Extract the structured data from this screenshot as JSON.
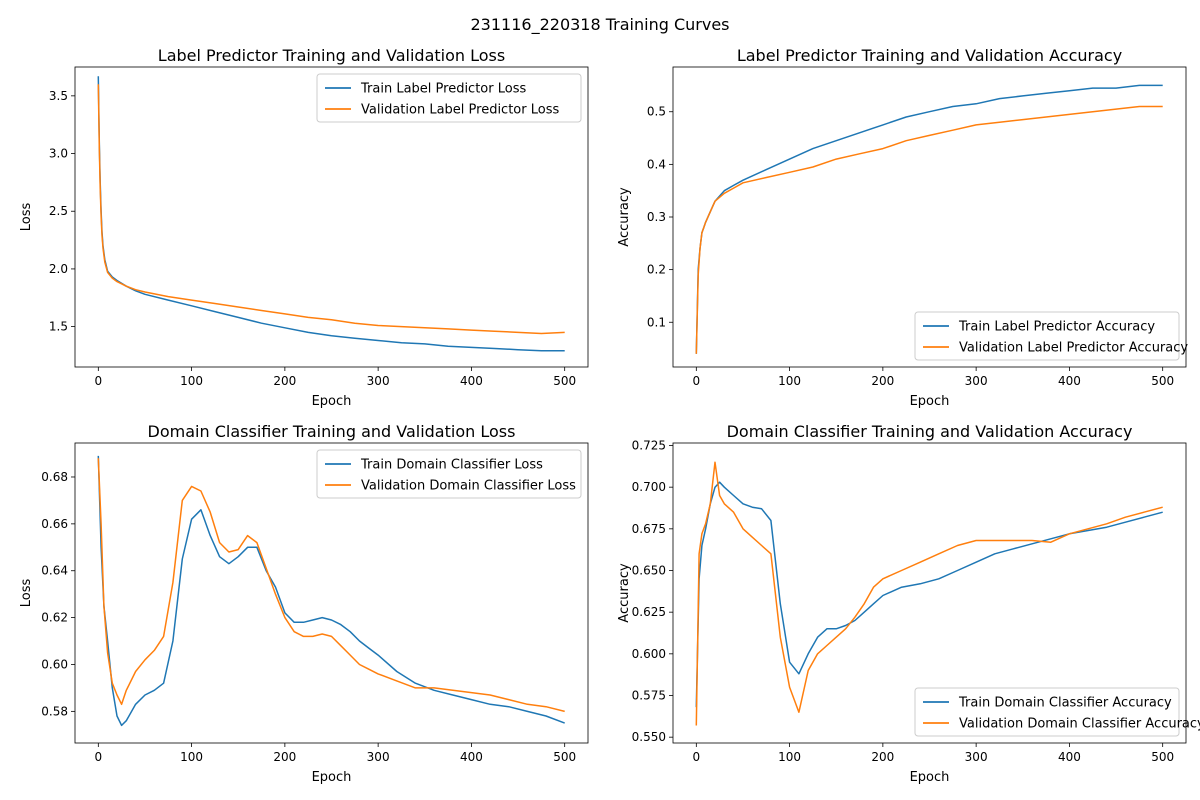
{
  "figure": {
    "suptitle": "231116_220318 Training Curves"
  },
  "chart_data": [
    {
      "type": "line",
      "title": "Label Predictor Training and Validation Loss",
      "xlabel": "Epoch",
      "ylabel": "Loss",
      "xlim": [
        -25,
        525
      ],
      "ylim": [
        1.15,
        3.75
      ],
      "xticks": [
        0,
        100,
        200,
        300,
        400,
        500
      ],
      "yticks": [
        1.5,
        2.0,
        2.5,
        3.0,
        3.5
      ],
      "ytick_labels": [
        "1.5",
        "2.0",
        "2.5",
        "3.0",
        "3.5"
      ],
      "legend": "upper-right",
      "series": [
        {
          "name": "Train Label Predictor Loss",
          "color": "#1f77b4",
          "x": [
            0,
            1,
            2,
            3,
            4,
            5,
            7,
            10,
            15,
            20,
            30,
            40,
            50,
            75,
            100,
            125,
            150,
            175,
            200,
            225,
            250,
            275,
            300,
            325,
            350,
            375,
            400,
            425,
            450,
            475,
            500
          ],
          "y": [
            3.67,
            3.1,
            2.75,
            2.5,
            2.32,
            2.2,
            2.08,
            1.98,
            1.93,
            1.9,
            1.85,
            1.81,
            1.78,
            1.73,
            1.68,
            1.63,
            1.58,
            1.53,
            1.49,
            1.45,
            1.42,
            1.4,
            1.38,
            1.36,
            1.35,
            1.33,
            1.32,
            1.31,
            1.3,
            1.29,
            1.29
          ]
        },
        {
          "name": "Validation Label Predictor Loss",
          "color": "#ff7f0e",
          "x": [
            0,
            1,
            2,
            3,
            4,
            5,
            7,
            10,
            15,
            20,
            30,
            40,
            50,
            75,
            100,
            125,
            150,
            175,
            200,
            225,
            250,
            275,
            300,
            325,
            350,
            375,
            400,
            425,
            450,
            475,
            500
          ],
          "y": [
            3.6,
            3.05,
            2.7,
            2.46,
            2.29,
            2.18,
            2.06,
            1.97,
            1.92,
            1.89,
            1.85,
            1.82,
            1.8,
            1.76,
            1.73,
            1.7,
            1.67,
            1.64,
            1.61,
            1.58,
            1.56,
            1.53,
            1.51,
            1.5,
            1.49,
            1.48,
            1.47,
            1.46,
            1.45,
            1.44,
            1.45
          ]
        }
      ]
    },
    {
      "type": "line",
      "title": "Label Predictor Training and Validation Accuracy",
      "xlabel": "Epoch",
      "ylabel": "Accuracy",
      "xlim": [
        -25,
        525
      ],
      "ylim": [
        0.015,
        0.585
      ],
      "xticks": [
        0,
        100,
        200,
        300,
        400,
        500
      ],
      "yticks": [
        0.1,
        0.2,
        0.3,
        0.4,
        0.5
      ],
      "ytick_labels": [
        "0.1",
        "0.2",
        "0.3",
        "0.4",
        "0.5"
      ],
      "legend": "lower-right",
      "series": [
        {
          "name": "Train Label Predictor Accuracy",
          "color": "#1f77b4",
          "x": [
            0,
            2,
            4,
            6,
            8,
            10,
            15,
            20,
            30,
            40,
            50,
            75,
            100,
            125,
            150,
            175,
            200,
            225,
            250,
            275,
            300,
            325,
            350,
            375,
            400,
            425,
            450,
            475,
            500
          ],
          "y": [
            0.04,
            0.2,
            0.24,
            0.27,
            0.28,
            0.29,
            0.31,
            0.33,
            0.35,
            0.36,
            0.37,
            0.39,
            0.41,
            0.43,
            0.445,
            0.46,
            0.475,
            0.49,
            0.5,
            0.51,
            0.515,
            0.525,
            0.53,
            0.535,
            0.54,
            0.545,
            0.545,
            0.55,
            0.55
          ]
        },
        {
          "name": "Validation Label Predictor Accuracy",
          "color": "#ff7f0e",
          "x": [
            0,
            2,
            4,
            6,
            8,
            10,
            15,
            20,
            30,
            40,
            50,
            75,
            100,
            125,
            150,
            175,
            200,
            225,
            250,
            275,
            300,
            325,
            350,
            375,
            400,
            425,
            450,
            475,
            500
          ],
          "y": [
            0.04,
            0.19,
            0.24,
            0.27,
            0.28,
            0.29,
            0.31,
            0.33,
            0.345,
            0.355,
            0.365,
            0.375,
            0.385,
            0.395,
            0.41,
            0.42,
            0.43,
            0.445,
            0.455,
            0.465,
            0.475,
            0.48,
            0.485,
            0.49,
            0.495,
            0.5,
            0.505,
            0.51,
            0.51
          ]
        }
      ]
    },
    {
      "type": "line",
      "title": "Domain Classifier Training and Validation Loss",
      "xlabel": "Epoch",
      "ylabel": "Loss",
      "xlim": [
        -25,
        525
      ],
      "ylim": [
        0.5665,
        0.6945
      ],
      "xticks": [
        0,
        100,
        200,
        300,
        400,
        500
      ],
      "yticks": [
        0.58,
        0.6,
        0.62,
        0.64,
        0.66,
        0.68
      ],
      "ytick_labels": [
        "0.58",
        "0.60",
        "0.62",
        "0.64",
        "0.66",
        "0.68"
      ],
      "legend": "upper-right",
      "series": [
        {
          "name": "Train Domain Classifier Loss",
          "color": "#1f77b4",
          "x": [
            0,
            3,
            6,
            10,
            15,
            20,
            25,
            30,
            40,
            50,
            60,
            70,
            80,
            90,
            100,
            110,
            120,
            130,
            140,
            150,
            160,
            170,
            180,
            190,
            200,
            210,
            220,
            230,
            240,
            250,
            260,
            270,
            280,
            290,
            300,
            320,
            340,
            360,
            380,
            400,
            420,
            440,
            460,
            480,
            500
          ],
          "y": [
            0.689,
            0.65,
            0.625,
            0.61,
            0.59,
            0.578,
            0.574,
            0.576,
            0.583,
            0.587,
            0.589,
            0.592,
            0.61,
            0.645,
            0.662,
            0.666,
            0.655,
            0.646,
            0.643,
            0.646,
            0.65,
            0.65,
            0.64,
            0.633,
            0.622,
            0.618,
            0.618,
            0.619,
            0.62,
            0.619,
            0.617,
            0.614,
            0.61,
            0.607,
            0.604,
            0.597,
            0.592,
            0.589,
            0.587,
            0.585,
            0.583,
            0.582,
            0.58,
            0.578,
            0.575
          ]
        },
        {
          "name": "Validation Domain Classifier Loss",
          "color": "#ff7f0e",
          "x": [
            0,
            3,
            6,
            10,
            15,
            20,
            25,
            30,
            40,
            50,
            60,
            70,
            80,
            90,
            100,
            110,
            120,
            130,
            140,
            150,
            160,
            170,
            180,
            190,
            200,
            210,
            220,
            230,
            240,
            250,
            260,
            270,
            280,
            290,
            300,
            320,
            340,
            360,
            380,
            400,
            420,
            440,
            460,
            480,
            500
          ],
          "y": [
            0.688,
            0.66,
            0.625,
            0.605,
            0.592,
            0.587,
            0.583,
            0.589,
            0.597,
            0.602,
            0.606,
            0.612,
            0.635,
            0.67,
            0.676,
            0.674,
            0.665,
            0.652,
            0.648,
            0.649,
            0.655,
            0.652,
            0.641,
            0.63,
            0.62,
            0.614,
            0.612,
            0.612,
            0.613,
            0.612,
            0.608,
            0.604,
            0.6,
            0.598,
            0.596,
            0.593,
            0.59,
            0.59,
            0.589,
            0.588,
            0.587,
            0.585,
            0.583,
            0.582,
            0.58
          ]
        }
      ]
    },
    {
      "type": "line",
      "title": "Domain Classifier Training and Validation Accuracy",
      "xlabel": "Epoch",
      "ylabel": "Accuracy",
      "xlim": [
        -25,
        525
      ],
      "ylim": [
        0.5465,
        0.7265
      ],
      "xticks": [
        0,
        100,
        200,
        300,
        400,
        500
      ],
      "yticks": [
        0.55,
        0.575,
        0.6,
        0.625,
        0.65,
        0.675,
        0.7,
        0.725
      ],
      "ytick_labels": [
        "0.550",
        "0.575",
        "0.600",
        "0.625",
        "0.650",
        "0.675",
        "0.700",
        "0.725"
      ],
      "legend": "lower-right",
      "series": [
        {
          "name": "Train Domain Classifier Accuracy",
          "color": "#1f77b4",
          "x": [
            0,
            3,
            6,
            10,
            15,
            20,
            25,
            30,
            40,
            50,
            60,
            70,
            80,
            90,
            100,
            110,
            120,
            130,
            140,
            150,
            160,
            170,
            180,
            190,
            200,
            220,
            240,
            260,
            280,
            300,
            320,
            340,
            360,
            380,
            400,
            420,
            440,
            460,
            480,
            500
          ],
          "y": [
            0.568,
            0.645,
            0.665,
            0.675,
            0.69,
            0.7,
            0.703,
            0.7,
            0.695,
            0.69,
            0.688,
            0.687,
            0.68,
            0.63,
            0.595,
            0.588,
            0.6,
            0.61,
            0.615,
            0.615,
            0.617,
            0.62,
            0.625,
            0.63,
            0.635,
            0.64,
            0.642,
            0.645,
            0.65,
            0.655,
            0.66,
            0.663,
            0.666,
            0.669,
            0.672,
            0.674,
            0.676,
            0.679,
            0.682,
            0.685
          ]
        },
        {
          "name": "Validation Domain Classifier Accuracy",
          "color": "#ff7f0e",
          "x": [
            0,
            3,
            6,
            10,
            15,
            20,
            25,
            30,
            40,
            50,
            60,
            70,
            80,
            90,
            100,
            110,
            120,
            130,
            140,
            150,
            160,
            170,
            180,
            190,
            200,
            220,
            240,
            260,
            280,
            300,
            320,
            340,
            360,
            380,
            400,
            420,
            440,
            460,
            480,
            500
          ],
          "y": [
            0.557,
            0.66,
            0.672,
            0.678,
            0.69,
            0.715,
            0.695,
            0.69,
            0.685,
            0.675,
            0.67,
            0.665,
            0.66,
            0.61,
            0.58,
            0.565,
            0.59,
            0.6,
            0.605,
            0.61,
            0.615,
            0.622,
            0.63,
            0.64,
            0.645,
            0.65,
            0.655,
            0.66,
            0.665,
            0.668,
            0.668,
            0.668,
            0.668,
            0.667,
            0.672,
            0.675,
            0.678,
            0.682,
            0.685,
            0.688
          ]
        }
      ]
    }
  ]
}
